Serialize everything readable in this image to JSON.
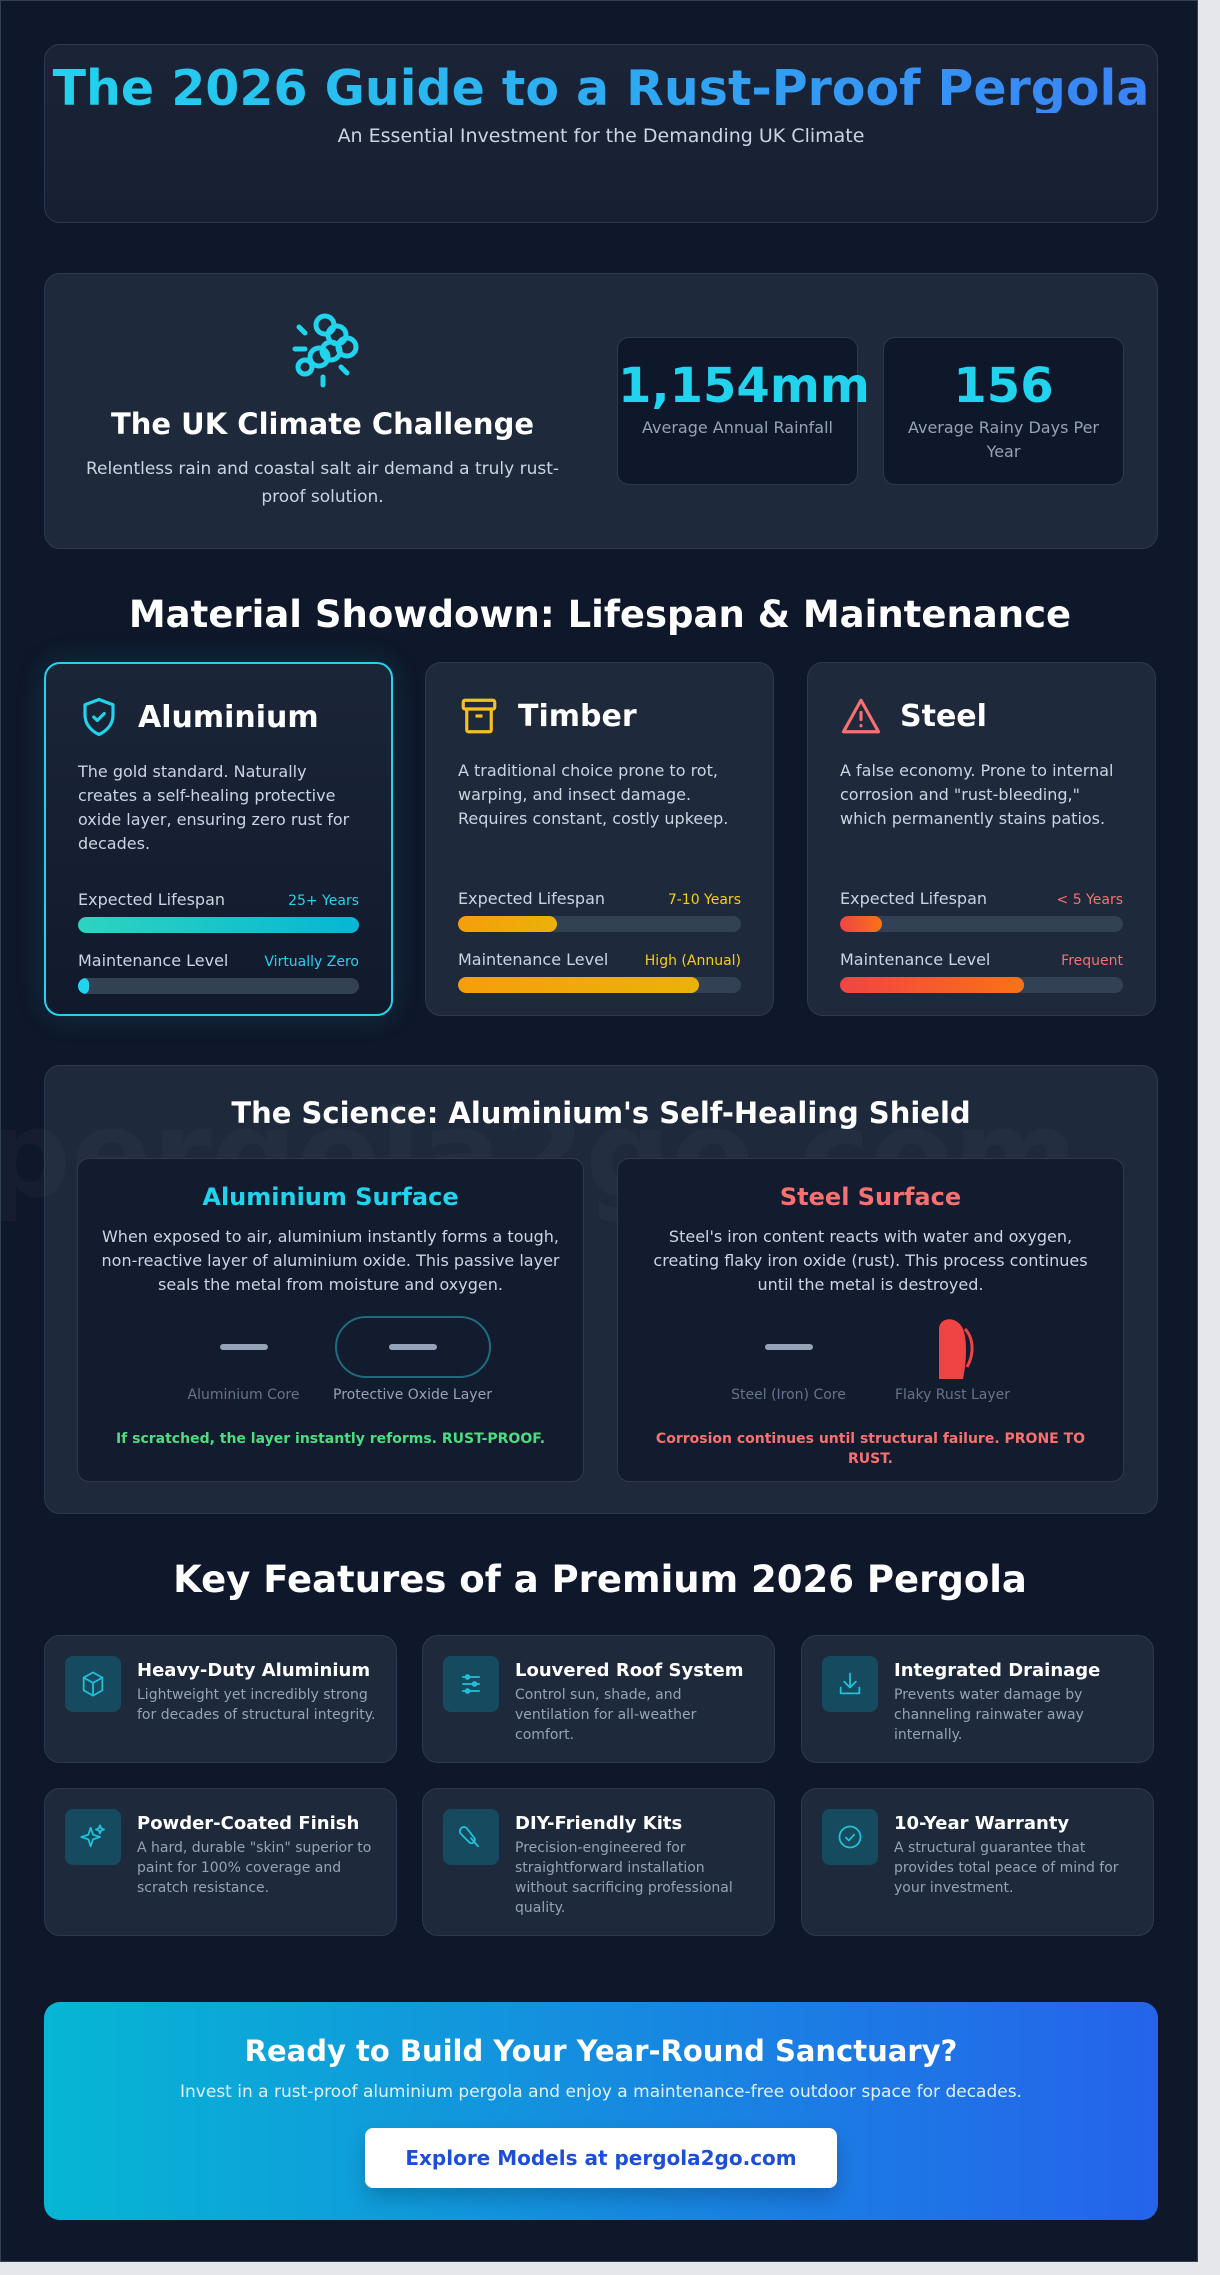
{
  "header": {
    "title": "The 2026 Guide to a Rust-Proof Pergola",
    "subtitle": "An Essential Investment for the Demanding UK Climate"
  },
  "climate": {
    "icon": "rain-sun-icon",
    "title": "The UK Climate Challenge",
    "text": "Relentless rain and coastal salt air demand a truly rust-proof solution.",
    "stats": [
      {
        "value": "1,154mm",
        "label": "Average Annual Rainfall"
      },
      {
        "value": "156",
        "label": "Average Rainy Days Per Year"
      }
    ]
  },
  "materials": {
    "title": "Material Showdown: Lifespan & Maintenance",
    "lifespan_label": "Expected Lifespan",
    "maintenance_label": "Maintenance Level",
    "items": [
      {
        "name": "Aluminium",
        "icon": "shield-check-icon",
        "desc": "The gold standard. Naturally creates a self-healing protective oxide layer, ensuring zero rust for decades.",
        "lifespan": "25+ Years",
        "lifespan_pct": 100,
        "maintenance": "Virtually Zero",
        "maintenance_pct": 4,
        "color": "#22d3ee"
      },
      {
        "name": "Timber",
        "icon": "archive-box-icon",
        "desc": "A traditional choice prone to rot, warping, and insect damage. Requires constant, costly upkeep.",
        "lifespan": "7-10 Years",
        "lifespan_pct": 35,
        "maintenance": "High (Annual)",
        "maintenance_pct": 85,
        "color": "#facc15"
      },
      {
        "name": "Steel",
        "icon": "warning-triangle-icon",
        "desc": "A false economy. Prone to internal corrosion and \"rust-bleeding,\" which permanently stains patios.",
        "lifespan": "< 5 Years",
        "lifespan_pct": 15,
        "maintenance": "Frequent",
        "maintenance_pct": 65,
        "color": "#f87171"
      }
    ]
  },
  "science": {
    "title": "The Science: Aluminium's Self-Healing Shield",
    "watermark": "pergola2go.com",
    "aluminium": {
      "title": "Aluminium Surface",
      "text": "When exposed to air, aluminium instantly forms a tough, non-reactive layer of aluminium oxide. This passive layer seals the metal from moisture and oxygen.",
      "core": "Aluminium Core",
      "layer": "Protective Oxide Layer",
      "note": "If scratched, the layer instantly reforms. RUST-PROOF."
    },
    "steel": {
      "title": "Steel Surface",
      "text": "Steel's iron content reacts with water and oxygen, creating flaky iron oxide (rust). This process continues until the metal is destroyed.",
      "core": "Steel (Iron) Core",
      "layer": "Flaky Rust Layer",
      "note": "Corrosion continues until structural failure. PRONE TO RUST."
    }
  },
  "features": {
    "title": "Key Features of a Premium 2026 Pergola",
    "items": [
      {
        "icon": "cube-icon",
        "title": "Heavy-Duty Aluminium",
        "text": "Lightweight yet incredibly strong for decades of structural integrity."
      },
      {
        "icon": "sliders-icon",
        "title": "Louvered Roof System",
        "text": "Control sun, shade, and ventilation for all-weather comfort."
      },
      {
        "icon": "download-tray-icon",
        "title": "Integrated Drainage",
        "text": "Prevents water damage by channeling rainwater away internally."
      },
      {
        "icon": "sparkles-icon",
        "title": "Powder-Coated Finish",
        "text": "A hard, durable \"skin\" superior to paint for 100% coverage and scratch resistance."
      },
      {
        "icon": "wrench-icon",
        "title": "DIY-Friendly Kits",
        "text": "Precision-engineered for straightforward installation without sacrificing professional quality."
      },
      {
        "icon": "check-circle-icon",
        "title": "10-Year Warranty",
        "text": "A structural guarantee that provides total peace of mind for your investment."
      }
    ]
  },
  "cta": {
    "title": "Ready to Build Your Year-Round Sanctuary?",
    "text": "Invest in a rust-proof aluminium pergola and enjoy a maintenance-free outdoor space for decades.",
    "button": "Explore Models at pergola2go.com"
  }
}
